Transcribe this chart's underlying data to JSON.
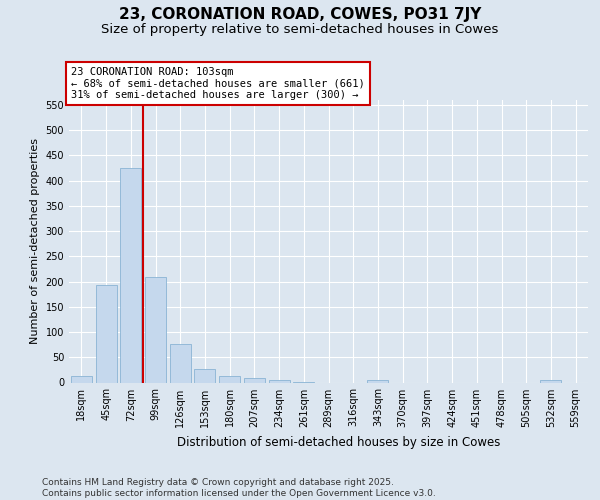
{
  "title1": "23, CORONATION ROAD, COWES, PO31 7JY",
  "title2": "Size of property relative to semi-detached houses in Cowes",
  "xlabel": "Distribution of semi-detached houses by size in Cowes",
  "ylabel": "Number of semi-detached properties",
  "categories": [
    "18sqm",
    "45sqm",
    "72sqm",
    "99sqm",
    "126sqm",
    "153sqm",
    "180sqm",
    "207sqm",
    "234sqm",
    "261sqm",
    "289sqm",
    "316sqm",
    "343sqm",
    "370sqm",
    "397sqm",
    "424sqm",
    "451sqm",
    "478sqm",
    "505sqm",
    "532sqm",
    "559sqm"
  ],
  "values": [
    13,
    193,
    425,
    210,
    77,
    27,
    13,
    9,
    4,
    1,
    0,
    0,
    4,
    0,
    0,
    0,
    0,
    0,
    0,
    4,
    0
  ],
  "bar_color": "#c5d8ed",
  "bar_edge_color": "#8ab4d4",
  "vline_color": "#cc0000",
  "vline_pos": 2.5,
  "annotation_text": "23 CORONATION ROAD: 103sqm\n← 68% of semi-detached houses are smaller (661)\n31% of semi-detached houses are larger (300) →",
  "annotation_box_facecolor": "#ffffff",
  "annotation_box_edgecolor": "#cc0000",
  "ylim": [
    0,
    560
  ],
  "yticks": [
    0,
    50,
    100,
    150,
    200,
    250,
    300,
    350,
    400,
    450,
    500,
    550
  ],
  "bg_color": "#dce6f0",
  "footer": "Contains HM Land Registry data © Crown copyright and database right 2025.\nContains public sector information licensed under the Open Government Licence v3.0.",
  "title1_fontsize": 11,
  "title2_fontsize": 9.5,
  "tick_fontsize": 7,
  "ylabel_fontsize": 8,
  "xlabel_fontsize": 8.5,
  "annotation_fontsize": 7.5,
  "footer_fontsize": 6.5
}
